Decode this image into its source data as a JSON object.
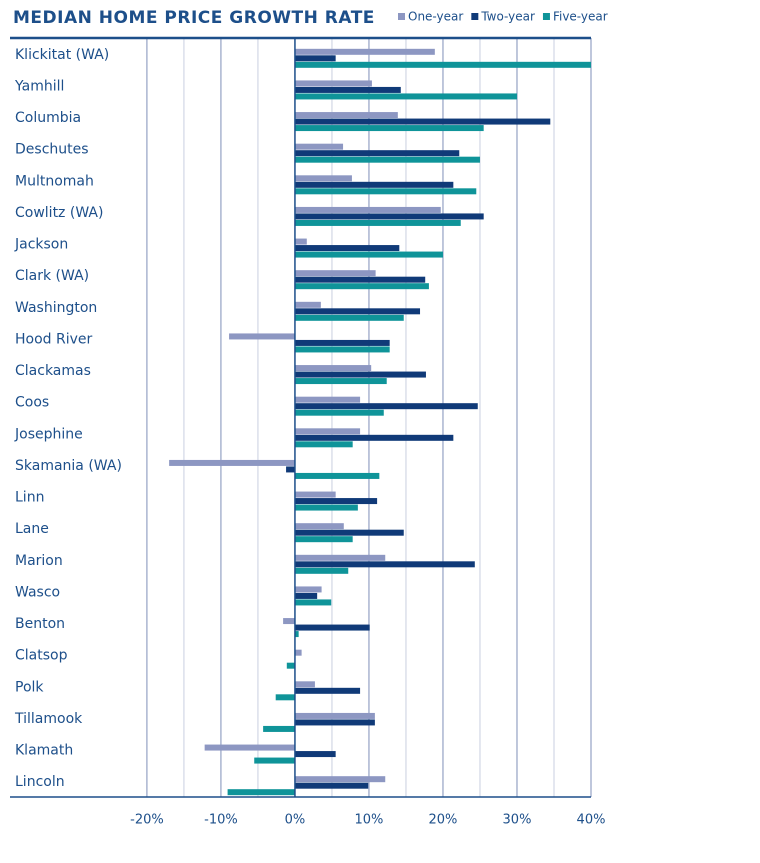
{
  "chart_data": {
    "type": "hbar",
    "title": "MEDIAN HOME PRICE GROWTH RATE",
    "categories": [
      "Klickitat (WA)",
      "Yamhill",
      "Columbia",
      "Deschutes",
      "Multnomah",
      "Cowlitz (WA)",
      "Jackson",
      "Clark (WA)",
      "Washington",
      "Hood River",
      "Clackamas",
      "Coos",
      "Josephine",
      "Skamania (WA)",
      "Linn",
      "Lane",
      "Marion",
      "Wasco",
      "Benton",
      "Clatsop",
      "Polk",
      "Tillamook",
      "Klamath",
      "Lincoln"
    ],
    "series": [
      {
        "name": "One-year",
        "color": "#8d97c2",
        "values": [
          18.9,
          10.4,
          13.9,
          6.5,
          7.7,
          19.7,
          1.6,
          10.9,
          3.5,
          -8.9,
          10.3,
          8.8,
          8.8,
          -17,
          5.5,
          6.6,
          12.2,
          3.6,
          -1.6,
          0.9,
          2.7,
          10.8,
          -12.2,
          12.2
        ]
      },
      {
        "name": "Two-year",
        "color": "#103a78",
        "values": [
          5.5,
          14.3,
          34.5,
          22.2,
          21.4,
          25.5,
          14.1,
          17.6,
          16.9,
          12.8,
          17.7,
          24.7,
          21.4,
          -1.2,
          11.1,
          14.7,
          24.3,
          3.0,
          10.1,
          0,
          8.8,
          10.8,
          5.5,
          9.9
        ]
      },
      {
        "name": "Five-year",
        "color": "#0f9499",
        "values": [
          40,
          30,
          25.5,
          25,
          24.5,
          22.4,
          20,
          18.1,
          14.7,
          12.8,
          12.4,
          12.0,
          7.8,
          11.4,
          8.5,
          7.8,
          7.2,
          4.9,
          0.5,
          -1.1,
          -2.6,
          -4.3,
          -5.5,
          -9.1
        ]
      }
    ],
    "xlim": [
      -38.5,
      40
    ],
    "xticks": [
      {
        "value": -20,
        "label": "-20%"
      },
      {
        "value": -10,
        "label": "-10%"
      },
      {
        "value": 0,
        "label": "0%"
      },
      {
        "value": 10,
        "label": "10%"
      },
      {
        "value": 20,
        "label": "20%"
      },
      {
        "value": 30,
        "label": "30%"
      },
      {
        "value": 40,
        "label": "40%"
      }
    ],
    "minor_xticks": [
      -15,
      -5,
      5,
      15,
      25,
      35
    ],
    "grid": true
  }
}
